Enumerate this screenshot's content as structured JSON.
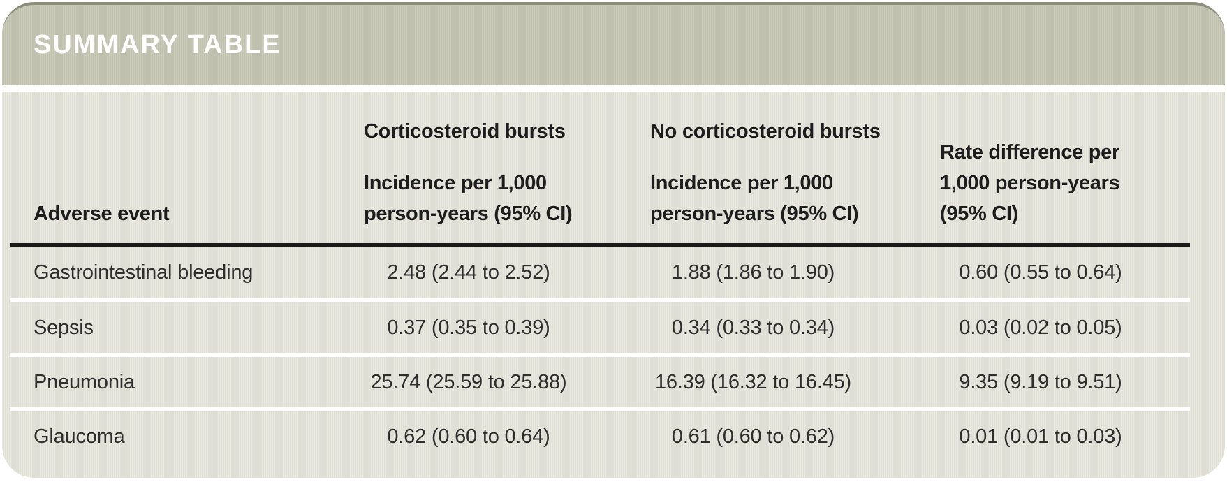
{
  "banner": {
    "title": "SUMMARY TABLE"
  },
  "colors": {
    "banner_background": "#c5c5b3",
    "banner_top_edge": "#8d8d7b",
    "banner_title_text": "#ffffff",
    "panel_background": "#e4e4da",
    "header_rule": "#1a1a1a",
    "row_separator": "#ffffff",
    "header_text": "#1d1d1d",
    "body_text": "#2e2e2e",
    "page_background": "#ffffff"
  },
  "table": {
    "header": {
      "adverse_event": "Adverse event",
      "col2_group": "Corticosteroid bursts",
      "col2_sub": "Incidence per 1,000\nperson-years (95% CI)",
      "col3_group": "No corticosteroid bursts",
      "col3_sub": "Incidence per 1,000\nperson-years (95% CI)",
      "col4_sub": "Rate difference per\n1,000 person-years\n(95% CI)"
    },
    "rows": [
      {
        "event": "Gastrointestinal bleeding",
        "corticosteroid_bursts": "2.48 (2.44 to 2.52)",
        "no_corticosteroid_bursts": "1.88 (1.86 to 1.90)",
        "rate_difference": "0.60 (0.55 to 0.64)"
      },
      {
        "event": "Sepsis",
        "corticosteroid_bursts": "0.37 (0.35 to 0.39)",
        "no_corticosteroid_bursts": "0.34 (0.33 to 0.34)",
        "rate_difference": "0.03 (0.02 to 0.05)"
      },
      {
        "event": "Pneumonia",
        "corticosteroid_bursts": "25.74 (25.59 to 25.88)",
        "no_corticosteroid_bursts": "16.39 (16.32 to 16.45)",
        "rate_difference": "9.35 (9.19 to 9.51)"
      },
      {
        "event": "Glaucoma",
        "corticosteroid_bursts": "0.62 (0.60 to 0.64)",
        "no_corticosteroid_bursts": "0.61 (0.60 to 0.62)",
        "rate_difference": "0.01 (0.01 to 0.03)"
      }
    ]
  }
}
